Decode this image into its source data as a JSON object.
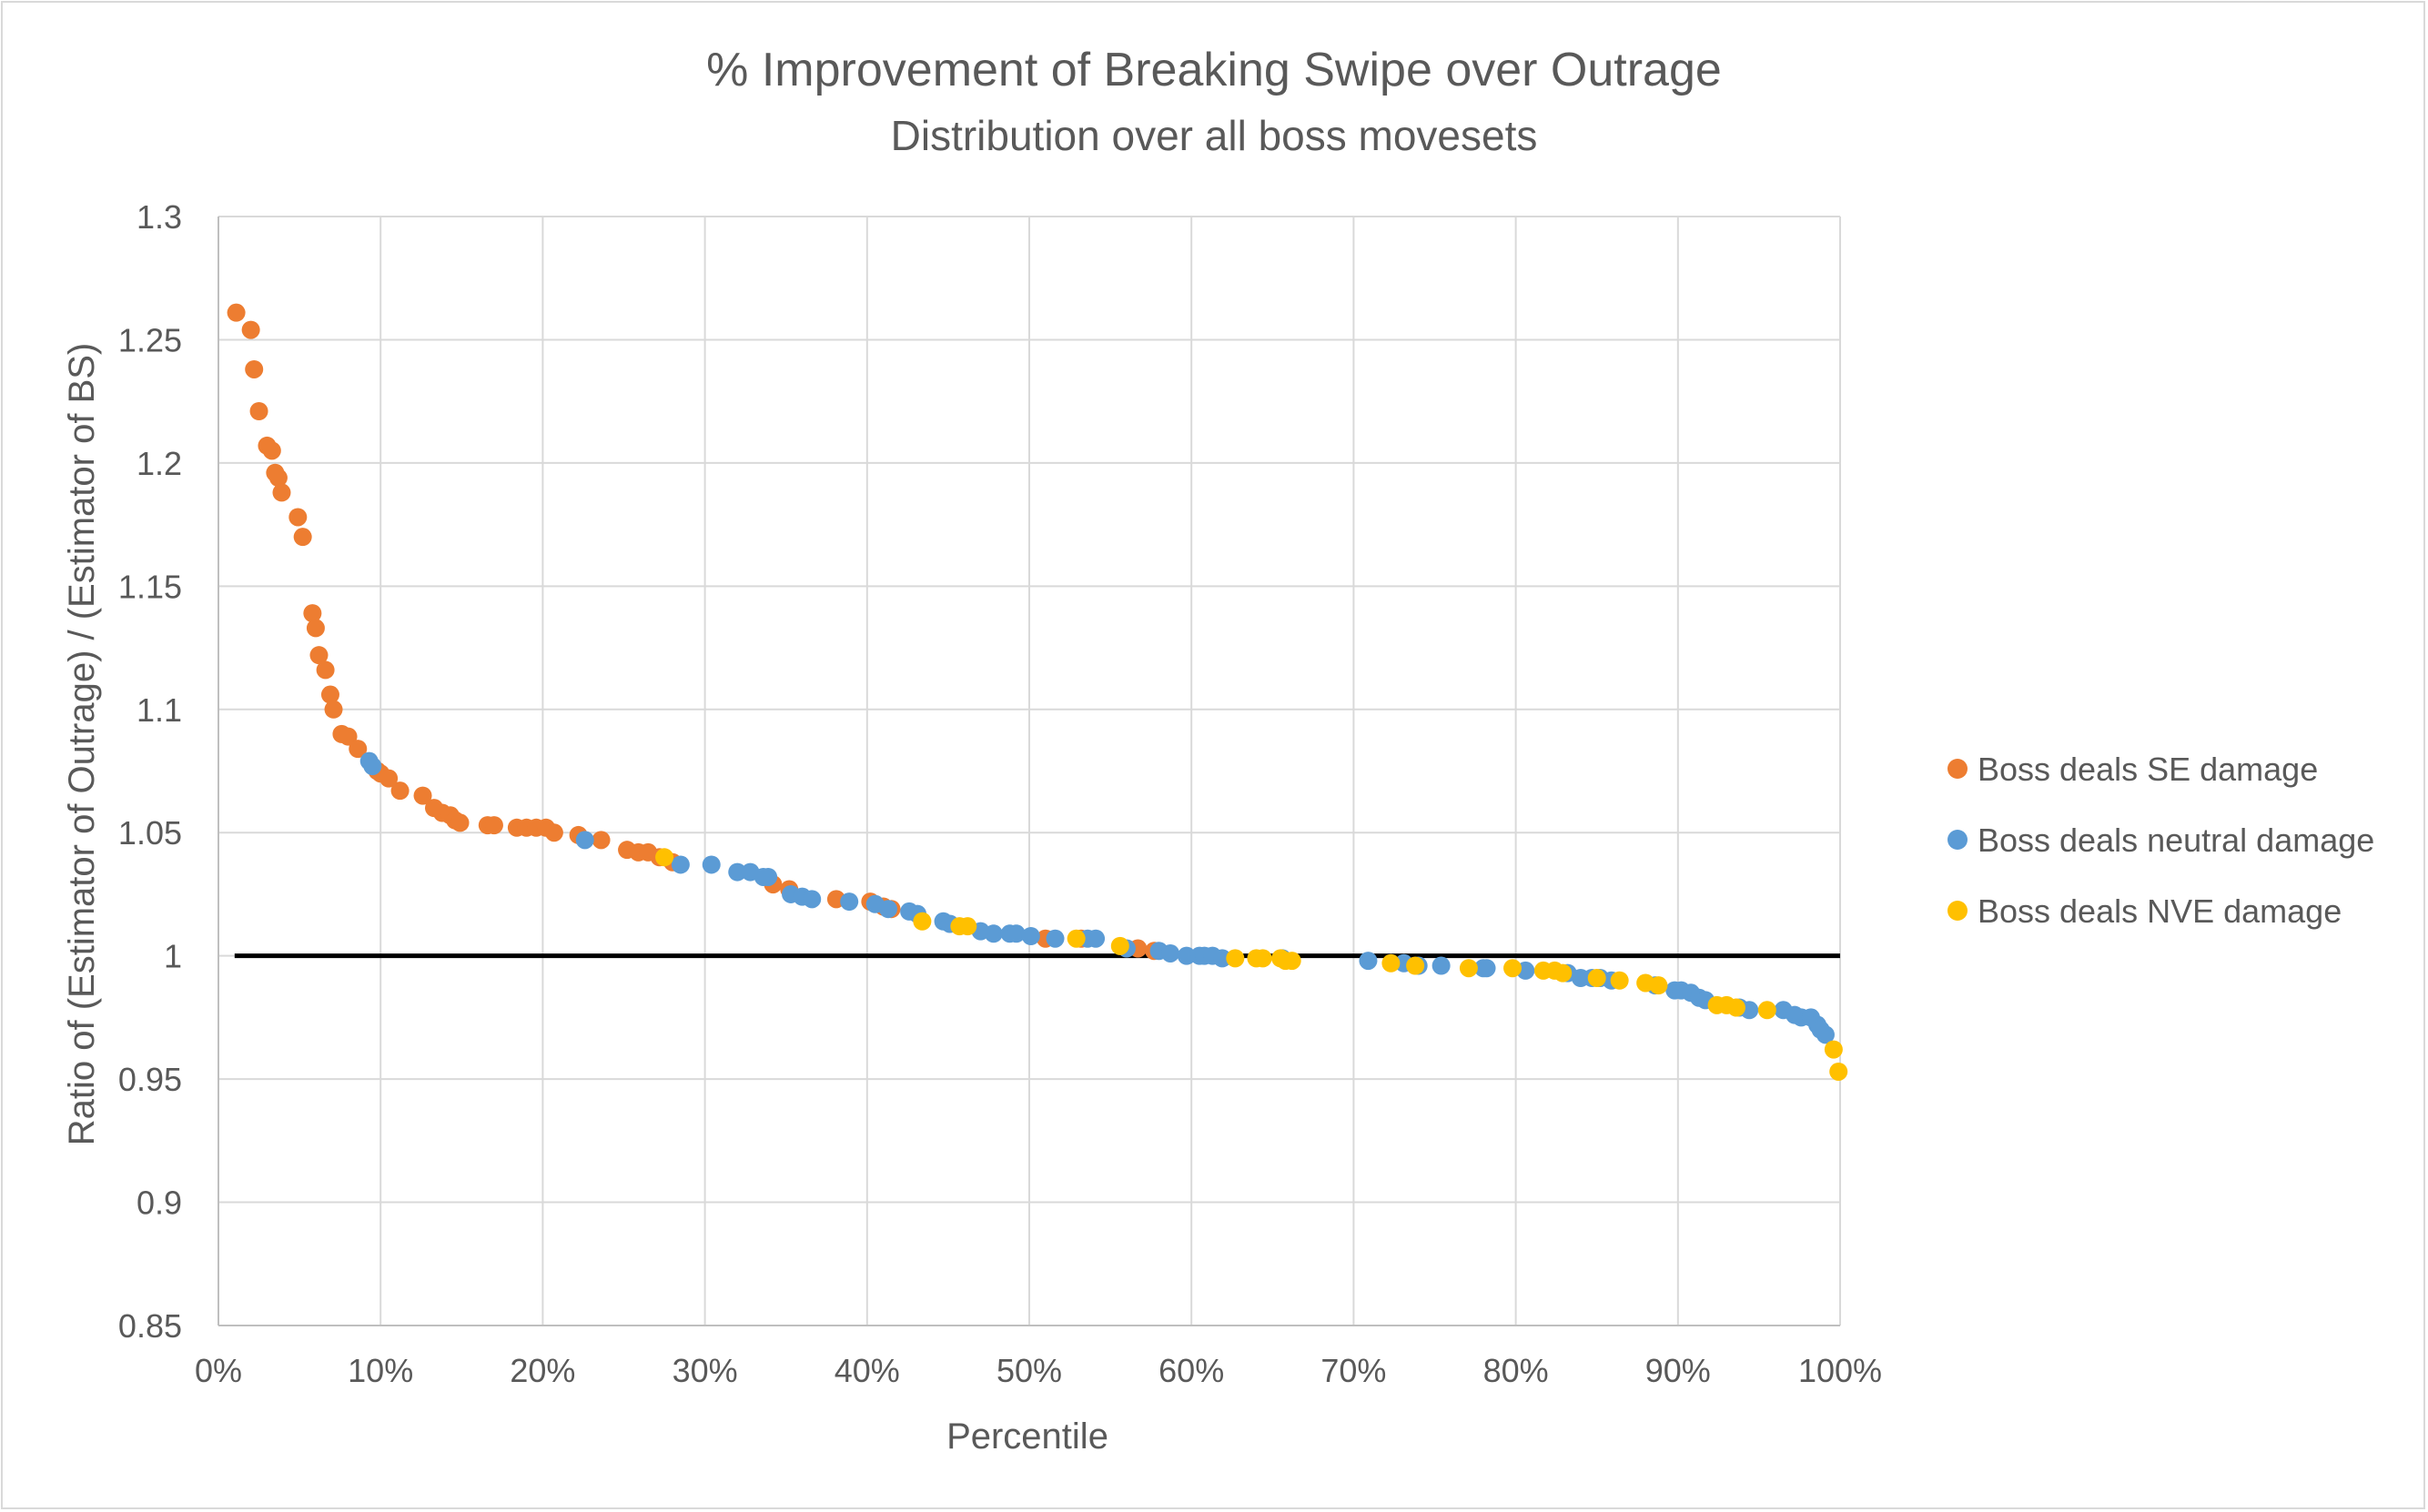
{
  "chart_data": {
    "type": "scatter",
    "title": "% Improvement of Breaking Swipe over Outrage",
    "subtitle": "Distribution over all boss movesets",
    "xlabel": "Percentile",
    "ylabel": "Ratio of (Estimator of Outrage) / (Estimator of BS)",
    "xlim": [
      0,
      1
    ],
    "ylim": [
      0.85,
      1.3
    ],
    "x_ticks": [
      0,
      0.1,
      0.2,
      0.3,
      0.4,
      0.5,
      0.6,
      0.7,
      0.8,
      0.9,
      1.0
    ],
    "x_tick_labels": [
      "0%",
      "10%",
      "20%",
      "30%",
      "40%",
      "50%",
      "60%",
      "70%",
      "80%",
      "90%",
      "100%"
    ],
    "y_ticks": [
      0.85,
      0.9,
      0.95,
      1.0,
      1.05,
      1.1,
      1.15,
      1.2,
      1.25,
      1.3
    ],
    "y_tick_labels": [
      "0.85",
      "0.9",
      "0.95",
      "1",
      "1.05",
      "1.1",
      "1.15",
      "1.2",
      "1.25",
      "1.3"
    ],
    "grid": "both",
    "legend_position": "right",
    "reference_line": {
      "x": [
        0.01,
        1.0
      ],
      "y": 1.0,
      "color": "#000000"
    },
    "series": [
      {
        "name": "Boss deals SE damage",
        "color": "#ED7D31",
        "points": [
          [
            0.011,
            1.261
          ],
          [
            0.02,
            1.254
          ],
          [
            0.022,
            1.238
          ],
          [
            0.025,
            1.221
          ],
          [
            0.03,
            1.207
          ],
          [
            0.033,
            1.205
          ],
          [
            0.035,
            1.196
          ],
          [
            0.037,
            1.194
          ],
          [
            0.039,
            1.188
          ],
          [
            0.049,
            1.178
          ],
          [
            0.052,
            1.17
          ],
          [
            0.058,
            1.139
          ],
          [
            0.06,
            1.133
          ],
          [
            0.062,
            1.122
          ],
          [
            0.066,
            1.116
          ],
          [
            0.069,
            1.106
          ],
          [
            0.071,
            1.1
          ],
          [
            0.076,
            1.09
          ],
          [
            0.08,
            1.089
          ],
          [
            0.086,
            1.084
          ],
          [
            0.098,
            1.075
          ],
          [
            0.1,
            1.074
          ],
          [
            0.105,
            1.072
          ],
          [
            0.112,
            1.067
          ],
          [
            0.126,
            1.065
          ],
          [
            0.133,
            1.06
          ],
          [
            0.138,
            1.058
          ],
          [
            0.143,
            1.057
          ],
          [
            0.146,
            1.055
          ],
          [
            0.149,
            1.054
          ],
          [
            0.166,
            1.053
          ],
          [
            0.17,
            1.053
          ],
          [
            0.184,
            1.052
          ],
          [
            0.19,
            1.052
          ],
          [
            0.196,
            1.052
          ],
          [
            0.202,
            1.052
          ],
          [
            0.207,
            1.05
          ],
          [
            0.222,
            1.049
          ],
          [
            0.236,
            1.047
          ],
          [
            0.252,
            1.043
          ],
          [
            0.259,
            1.042
          ],
          [
            0.265,
            1.042
          ],
          [
            0.272,
            1.04
          ],
          [
            0.28,
            1.038
          ],
          [
            0.342,
            1.029
          ],
          [
            0.352,
            1.027
          ],
          [
            0.381,
            1.023
          ],
          [
            0.402,
            1.022
          ],
          [
            0.41,
            1.02
          ],
          [
            0.415,
            1.019
          ],
          [
            0.51,
            1.007
          ],
          [
            0.532,
            1.007
          ],
          [
            0.567,
            1.003
          ],
          [
            0.577,
            1.002
          ]
        ]
      },
      {
        "name": "Boss deals neutral damage",
        "color": "#5B9BD5",
        "points": [
          [
            0.093,
            1.079
          ],
          [
            0.095,
            1.077
          ],
          [
            0.226,
            1.047
          ],
          [
            0.285,
            1.037
          ],
          [
            0.304,
            1.037
          ],
          [
            0.32,
            1.034
          ],
          [
            0.328,
            1.034
          ],
          [
            0.336,
            1.032
          ],
          [
            0.339,
            1.032
          ],
          [
            0.353,
            1.025
          ],
          [
            0.36,
            1.024
          ],
          [
            0.366,
            1.023
          ],
          [
            0.389,
            1.022
          ],
          [
            0.405,
            1.021
          ],
          [
            0.413,
            1.019
          ],
          [
            0.426,
            1.018
          ],
          [
            0.431,
            1.017
          ],
          [
            0.447,
            1.014
          ],
          [
            0.451,
            1.013
          ],
          [
            0.47,
            1.01
          ],
          [
            0.478,
            1.009
          ],
          [
            0.488,
            1.009
          ],
          [
            0.492,
            1.009
          ],
          [
            0.501,
            1.008
          ],
          [
            0.516,
            1.007
          ],
          [
            0.536,
            1.007
          ],
          [
            0.541,
            1.007
          ],
          [
            0.56,
            1.003
          ],
          [
            0.58,
            1.002
          ],
          [
            0.587,
            1.001
          ],
          [
            0.597,
            1.0
          ],
          [
            0.605,
            1.0
          ],
          [
            0.608,
            1.0
          ],
          [
            0.613,
            1.0
          ],
          [
            0.619,
            0.999
          ],
          [
            0.656,
            0.999
          ],
          [
            0.709,
            0.998
          ],
          [
            0.731,
            0.997
          ],
          [
            0.74,
            0.996
          ],
          [
            0.754,
            0.996
          ],
          [
            0.78,
            0.995
          ],
          [
            0.782,
            0.995
          ],
          [
            0.806,
            0.994
          ],
          [
            0.832,
            0.993
          ],
          [
            0.84,
            0.991
          ],
          [
            0.847,
            0.991
          ],
          [
            0.852,
            0.991
          ],
          [
            0.859,
            0.99
          ],
          [
            0.886,
            0.988
          ],
          [
            0.898,
            0.986
          ],
          [
            0.902,
            0.986
          ],
          [
            0.908,
            0.985
          ],
          [
            0.913,
            0.983
          ],
          [
            0.917,
            0.982
          ],
          [
            0.938,
            0.979
          ],
          [
            0.944,
            0.978
          ],
          [
            0.965,
            0.978
          ],
          [
            0.972,
            0.976
          ],
          [
            0.976,
            0.975
          ],
          [
            0.982,
            0.975
          ],
          [
            0.986,
            0.972
          ],
          [
            0.988,
            0.97
          ],
          [
            0.991,
            0.968
          ]
        ]
      },
      {
        "name": "Boss deals NVE damage",
        "color": "#FFC000",
        "points": [
          [
            0.275,
            1.04
          ],
          [
            0.434,
            1.014
          ],
          [
            0.457,
            1.012
          ],
          [
            0.462,
            1.012
          ],
          [
            0.529,
            1.007
          ],
          [
            0.556,
            1.004
          ],
          [
            0.627,
            0.999
          ],
          [
            0.64,
            0.999
          ],
          [
            0.644,
            0.999
          ],
          [
            0.655,
            0.999
          ],
          [
            0.658,
            0.998
          ],
          [
            0.662,
            0.998
          ],
          [
            0.723,
            0.997
          ],
          [
            0.738,
            0.996
          ],
          [
            0.771,
            0.995
          ],
          [
            0.798,
            0.995
          ],
          [
            0.817,
            0.994
          ],
          [
            0.824,
            0.994
          ],
          [
            0.829,
            0.993
          ],
          [
            0.85,
            0.991
          ],
          [
            0.864,
            0.99
          ],
          [
            0.88,
            0.989
          ],
          [
            0.888,
            0.988
          ],
          [
            0.924,
            0.98
          ],
          [
            0.93,
            0.98
          ],
          [
            0.936,
            0.979
          ],
          [
            0.955,
            0.978
          ],
          [
            0.996,
            0.962
          ],
          [
            0.999,
            0.953
          ]
        ]
      }
    ]
  }
}
